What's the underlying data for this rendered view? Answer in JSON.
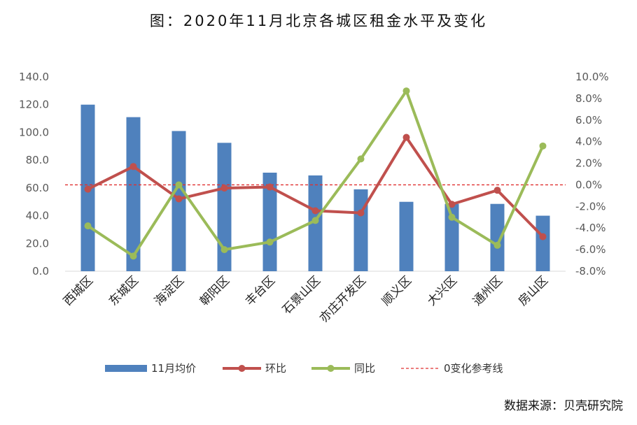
{
  "title": "图：2020年11月北京各城区租金水平及变化",
  "source": "数据来源：贝壳研究院",
  "chart_data": {
    "type": "bar",
    "categories": [
      "西城区",
      "东城区",
      "海淀区",
      "朝阳区",
      "丰台区",
      "石景山区",
      "亦庄开发区",
      "顺义区",
      "大兴区",
      "通州区",
      "房山区"
    ],
    "series": [
      {
        "name": "11月均价",
        "type": "bar",
        "axis": "left",
        "color": "#4f81bd",
        "values": [
          120.0,
          111.0,
          101.0,
          92.5,
          71.0,
          69.0,
          59.0,
          50.0,
          48.5,
          48.5,
          40.0
        ]
      },
      {
        "name": "环比",
        "type": "line",
        "axis": "right",
        "color": "#c0504d",
        "values": [
          -0.4,
          1.7,
          -1.3,
          -0.3,
          -0.2,
          -2.4,
          -2.6,
          4.4,
          -1.8,
          -0.5,
          -4.8
        ]
      },
      {
        "name": "同比",
        "type": "line",
        "axis": "right",
        "color": "#9bbb59",
        "values": [
          -3.8,
          -6.6,
          0.0,
          -6.0,
          -5.3,
          -3.3,
          2.4,
          8.7,
          -3.0,
          -5.6,
          3.6
        ]
      },
      {
        "name": "0变化参考线",
        "type": "reference",
        "axis": "right",
        "color": "#e03030",
        "value": 0
      }
    ],
    "y_left": {
      "min": 0,
      "max": 140,
      "step": 20,
      "ticks": [
        "0.0",
        "20.0",
        "40.0",
        "60.0",
        "80.0",
        "100.0",
        "120.0",
        "140.0"
      ]
    },
    "y_right": {
      "min": -8,
      "max": 10,
      "step": 2,
      "ticks": [
        "-8.0%",
        "-6.0%",
        "-4.0%",
        "-2.0%",
        "0.0%",
        "2.0%",
        "4.0%",
        "6.0%",
        "8.0%",
        "10.0%"
      ]
    },
    "grid": false,
    "legend_position": "bottom"
  }
}
